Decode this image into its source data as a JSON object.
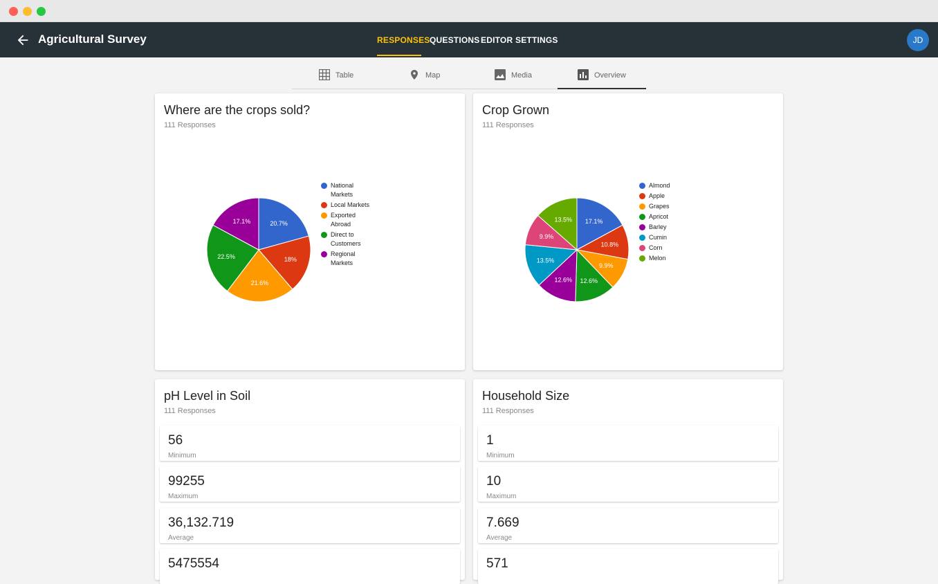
{
  "window": {
    "title": ""
  },
  "appbar": {
    "title": "Agricultural Survey",
    "tabs": [
      {
        "label": "RESPONSES",
        "active": true
      },
      {
        "label": "QUESTIONS",
        "active": false
      },
      {
        "label": "EDITOR",
        "active": false
      },
      {
        "label": "SETTINGS",
        "active": false
      }
    ],
    "avatar_initials": "JD",
    "accent": "#ffc107",
    "background": "#263238"
  },
  "subtabs": [
    {
      "label": "Table",
      "icon": "table-icon",
      "active": false
    },
    {
      "label": "Map",
      "icon": "map-pin-icon",
      "active": false
    },
    {
      "label": "Media",
      "icon": "image-icon",
      "active": false
    },
    {
      "label": "Overview",
      "icon": "bar-chart-icon",
      "active": true
    }
  ],
  "cards": {
    "crops_sold": {
      "title": "Where are the crops sold?",
      "responses": "111 Responses"
    },
    "crop_grown": {
      "title": "Crop Grown",
      "responses": "111 Responses"
    },
    "ph_level": {
      "title": "pH Level in Soil",
      "responses": "111 Responses",
      "stats": [
        {
          "value": "56",
          "label": "Minimum"
        },
        {
          "value": "99255",
          "label": "Maximum"
        },
        {
          "value": "36,132.719",
          "label": "Average"
        },
        {
          "value": "5475554",
          "label": ""
        }
      ]
    },
    "household": {
      "title": "Household Size",
      "responses": "111 Responses",
      "stats": [
        {
          "value": "1",
          "label": "Minimum"
        },
        {
          "value": "10",
          "label": "Maximum"
        },
        {
          "value": "7.669",
          "label": "Average"
        },
        {
          "value": "571",
          "label": ""
        }
      ]
    }
  },
  "chart_data": [
    {
      "type": "pie",
      "title": "Where are the crops sold?",
      "categories": [
        "National Markets",
        "Local Markets",
        "Exported Abroad",
        "Direct to Customers",
        "Regional Markets"
      ],
      "values": [
        20.7,
        18,
        21.6,
        22.5,
        17.1
      ],
      "labels": [
        "20.7%",
        "18%",
        "21.6%",
        "22.5%",
        "17.1%"
      ],
      "colors": [
        "#3366cc",
        "#dc3912",
        "#ff9900",
        "#109618",
        "#990099"
      ],
      "legend": "right"
    },
    {
      "type": "pie",
      "title": "Crop Grown",
      "categories": [
        "Almond",
        "Apple",
        "Grapes",
        "Apricot",
        "Barley",
        "Cumin",
        "Corn",
        "Melon"
      ],
      "values": [
        17.1,
        10.8,
        9.9,
        12.6,
        12.6,
        13.5,
        9.9,
        13.5
      ],
      "labels": [
        "17.1%",
        "10.8%",
        "9.9%",
        "12.6%",
        "12.6%",
        "13.5%",
        "9.9%",
        "13.5%"
      ],
      "colors": [
        "#3366cc",
        "#dc3912",
        "#ff9900",
        "#109618",
        "#990099",
        "#0099c6",
        "#dd4477",
        "#66aa00"
      ],
      "legend": "right"
    }
  ]
}
